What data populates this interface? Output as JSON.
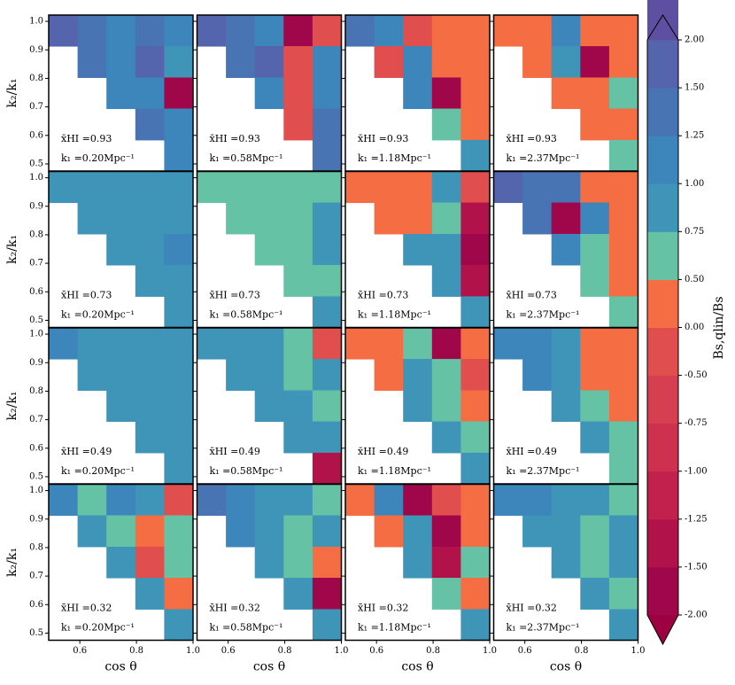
{
  "chart_data": {
    "type": "contour",
    "xlabel": "cos θ",
    "ylabel": "k₂/k₁",
    "colorbar_label": "Bs,qlin/Bs",
    "xlim": [
      0.49,
      1.0
    ],
    "ylim": [
      0.475,
      1.022
    ],
    "xticks": [
      0.6,
      0.8,
      {
        "value": 1,
        "label": "1.0"
      }
    ],
    "yticks": [
      0.5,
      0.6,
      0.7,
      0.8,
      0.9,
      {
        "value": 1,
        "label": "1.0"
      }
    ],
    "xbins": [
      0.49,
      0.592,
      0.694,
      0.796,
      0.898,
      1.0
    ],
    "ybins": [
      1.022,
      0.913,
      0.803,
      0.694,
      0.584,
      0.475
    ],
    "colorbar": {
      "ticks": [
        {
          "value": -2,
          "label": "-2.00"
        },
        {
          "value": -1.5,
          "label": "-1.50"
        },
        {
          "value": -1.25,
          "label": "-1.25"
        },
        {
          "value": -1,
          "label": "-1.00"
        },
        {
          "value": -0.75,
          "label": "-0.75"
        },
        {
          "value": -0.5,
          "label": "-0.50"
        },
        {
          "value": 0,
          "label": "0.00"
        },
        {
          "value": 0.5,
          "label": "0.50"
        },
        {
          "value": 0.75,
          "label": "0.75"
        },
        {
          "value": 1,
          "label": "1.00"
        },
        {
          "value": 1.25,
          "label": "1.25"
        },
        {
          "value": 1.5,
          "label": "1.50"
        },
        {
          "value": 2,
          "label": "2.00"
        }
      ],
      "colors": [
        "#a0074a",
        "#b2124a",
        "#c1214c",
        "#cd314e",
        "#d63f4f",
        "#e04e4d",
        "#f46d43",
        "#66c2a5",
        "#3e95b8",
        "#3c86bc",
        "#4974b4",
        "#5464ad",
        "#5e4fa2"
      ],
      "under_color": "#9e0142",
      "over_color": "#5e4fa2"
    },
    "panels": [
      {
        "annotation_x": "x̄HI =0.93",
        "annotation_k": "k₁ =0.20Mpc⁻¹",
        "z": [
          [
            1.6,
            1.3,
            1.1,
            1.4,
            1.2
          ],
          [
            null,
            1.3,
            1.1,
            1.6,
            0.9
          ],
          [
            null,
            null,
            1.2,
            1.1,
            -1.6
          ],
          [
            null,
            null,
            null,
            1.3,
            1.1
          ],
          [
            null,
            null,
            null,
            null,
            1.2
          ]
        ]
      },
      {
        "annotation_x": "x̄HI =0.93",
        "annotation_k": "k₁ =0.58Mpc⁻¹",
        "z": [
          [
            1.6,
            1.4,
            1.1,
            -1.6,
            -0.3
          ],
          [
            null,
            1.3,
            1.6,
            -0.3,
            1.1
          ],
          [
            null,
            null,
            1.2,
            -0.3,
            1.1
          ],
          [
            null,
            null,
            null,
            -0.3,
            1.4
          ],
          [
            null,
            null,
            null,
            null,
            1.3
          ]
        ]
      },
      {
        "annotation_x": "x̄HI =0.93",
        "annotation_k": "k₁ =1.18Mpc⁻¹",
        "z": [
          [
            1.4,
            1.2,
            -0.3,
            0.3,
            0.3
          ],
          [
            null,
            -0.3,
            1.1,
            0.3,
            0.3
          ],
          [
            null,
            null,
            1.2,
            -1.6,
            0.3
          ],
          [
            null,
            null,
            null,
            0.6,
            0.3
          ],
          [
            null,
            null,
            null,
            null,
            0.8
          ]
        ]
      },
      {
        "annotation_x": "x̄HI =0.93",
        "annotation_k": "k₁ =2.37Mpc⁻¹",
        "z": [
          [
            0.3,
            0.3,
            1.1,
            0.3,
            0.3
          ],
          [
            null,
            0.3,
            0.8,
            -1.6,
            0.3
          ],
          [
            null,
            null,
            0.3,
            0.3,
            0.6
          ],
          [
            null,
            null,
            null,
            0.3,
            0.3
          ],
          [
            null,
            null,
            null,
            null,
            0.6
          ]
        ]
      },
      {
        "annotation_x": "x̄HI =0.73",
        "annotation_k": "k₁ =0.20Mpc⁻¹",
        "z": [
          [
            0.9,
            0.9,
            0.9,
            0.9,
            0.9
          ],
          [
            null,
            0.9,
            0.9,
            0.9,
            0.9
          ],
          [
            null,
            null,
            0.9,
            0.9,
            1.1
          ],
          [
            null,
            null,
            null,
            0.9,
            0.9
          ],
          [
            null,
            null,
            null,
            null,
            0.9
          ]
        ]
      },
      {
        "annotation_x": "x̄HI =0.73",
        "annotation_k": "k₁ =0.58Mpc⁻¹",
        "z": [
          [
            0.7,
            0.7,
            0.7,
            0.7,
            0.7
          ],
          [
            null,
            0.7,
            0.7,
            0.7,
            0.9
          ],
          [
            null,
            null,
            0.7,
            0.7,
            0.9
          ],
          [
            null,
            null,
            null,
            0.7,
            0.7
          ],
          [
            null,
            null,
            null,
            null,
            0.9
          ]
        ]
      },
      {
        "annotation_x": "x̄HI =0.73",
        "annotation_k": "k₁ =1.18Mpc⁻¹",
        "z": [
          [
            0.3,
            0.3,
            0.3,
            0.8,
            -0.3
          ],
          [
            null,
            0.3,
            0.3,
            0.6,
            -1.3
          ],
          [
            null,
            null,
            0.8,
            0.9,
            -1.6
          ],
          [
            null,
            null,
            null,
            0.9,
            -1.3
          ],
          [
            null,
            null,
            null,
            null,
            0.9
          ]
        ]
      },
      {
        "annotation_x": "x̄HI =0.73",
        "annotation_k": "k₁ =2.37Mpc⁻¹",
        "z": [
          [
            1.6,
            1.4,
            1.4,
            0.3,
            0.3
          ],
          [
            null,
            1.4,
            -1.6,
            1.1,
            0.3
          ],
          [
            null,
            null,
            1.1,
            0.6,
            0.3
          ],
          [
            null,
            null,
            null,
            0.6,
            0.3
          ],
          [
            null,
            null,
            null,
            null,
            0.6
          ]
        ]
      },
      {
        "annotation_x": "x̄HI =0.49",
        "annotation_k": "k₁ =0.20Mpc⁻¹",
        "z": [
          [
            1.1,
            0.9,
            0.9,
            0.9,
            0.9
          ],
          [
            null,
            0.9,
            0.9,
            0.9,
            0.9
          ],
          [
            null,
            null,
            0.9,
            0.9,
            0.9
          ],
          [
            null,
            null,
            null,
            0.9,
            0.9
          ],
          [
            null,
            null,
            null,
            null,
            0.9
          ]
        ]
      },
      {
        "annotation_x": "x̄HI =0.49",
        "annotation_k": "k₁ =0.58Mpc⁻¹",
        "z": [
          [
            0.8,
            0.9,
            0.9,
            0.6,
            -0.3
          ],
          [
            null,
            0.9,
            0.8,
            0.6,
            0.9
          ],
          [
            null,
            null,
            0.9,
            0.8,
            0.6
          ],
          [
            null,
            null,
            null,
            0.8,
            0.9
          ],
          [
            null,
            null,
            null,
            null,
            -1.3
          ]
        ]
      },
      {
        "annotation_x": "x̄HI =0.49",
        "annotation_k": "k₁ =1.18Mpc⁻¹",
        "z": [
          [
            0.3,
            0.3,
            0.6,
            -1.6,
            0.3
          ],
          [
            null,
            0.3,
            0.8,
            0.6,
            -0.3
          ],
          [
            null,
            null,
            0.8,
            0.6,
            0.3
          ],
          [
            null,
            null,
            null,
            0.9,
            0.6
          ],
          [
            null,
            null,
            null,
            null,
            0.8
          ]
        ]
      },
      {
        "annotation_x": "x̄HI =0.49",
        "annotation_k": "k₁ =2.37Mpc⁻¹",
        "z": [
          [
            1.1,
            1.1,
            0.9,
            0.3,
            0.3
          ],
          [
            null,
            1.1,
            0.9,
            0.3,
            0.3
          ],
          [
            null,
            null,
            0.9,
            0.6,
            0.3
          ],
          [
            null,
            null,
            null,
            0.9,
            0.6
          ],
          [
            null,
            null,
            null,
            null,
            0.6
          ]
        ]
      },
      {
        "annotation_x": "x̄HI =0.32",
        "annotation_k": "k₁ =0.20Mpc⁻¹",
        "z": [
          [
            1.1,
            0.6,
            1.1,
            0.9,
            -0.3
          ],
          [
            null,
            0.9,
            0.6,
            0.3,
            0.6
          ],
          [
            null,
            null,
            0.9,
            -0.3,
            0.6
          ],
          [
            null,
            null,
            null,
            0.9,
            0.3
          ],
          [
            null,
            null,
            null,
            null,
            0.9
          ]
        ]
      },
      {
        "annotation_x": "x̄HI =0.32",
        "annotation_k": "k₁ =0.58Mpc⁻¹",
        "z": [
          [
            1.4,
            1.1,
            0.9,
            0.9,
            0.6
          ],
          [
            null,
            1.1,
            0.9,
            0.6,
            0.9
          ],
          [
            null,
            null,
            0.9,
            0.6,
            0.3
          ],
          [
            null,
            null,
            null,
            0.9,
            -1.6
          ],
          [
            null,
            null,
            null,
            null,
            0.9
          ]
        ]
      },
      {
        "annotation_x": "x̄HI =0.32",
        "annotation_k": "k₁ =1.18Mpc⁻¹",
        "z": [
          [
            0.3,
            1.1,
            -1.6,
            -0.3,
            0.3
          ],
          [
            null,
            0.3,
            0.8,
            -1.6,
            0.3
          ],
          [
            null,
            null,
            0.8,
            -1.3,
            0.6
          ],
          [
            null,
            null,
            null,
            0.6,
            0.3
          ],
          [
            null,
            null,
            null,
            null,
            0.8
          ]
        ]
      },
      {
        "annotation_x": "x̄HI =0.32",
        "annotation_k": "k₁ =2.37Mpc⁻¹",
        "z": [
          [
            1.1,
            1.1,
            0.9,
            0.9,
            0.6
          ],
          [
            null,
            0.9,
            0.9,
            0.6,
            0.9
          ],
          [
            null,
            null,
            0.9,
            0.6,
            0.9
          ],
          [
            null,
            null,
            null,
            0.9,
            0.6
          ],
          [
            null,
            null,
            null,
            null,
            0.9
          ]
        ]
      }
    ]
  }
}
